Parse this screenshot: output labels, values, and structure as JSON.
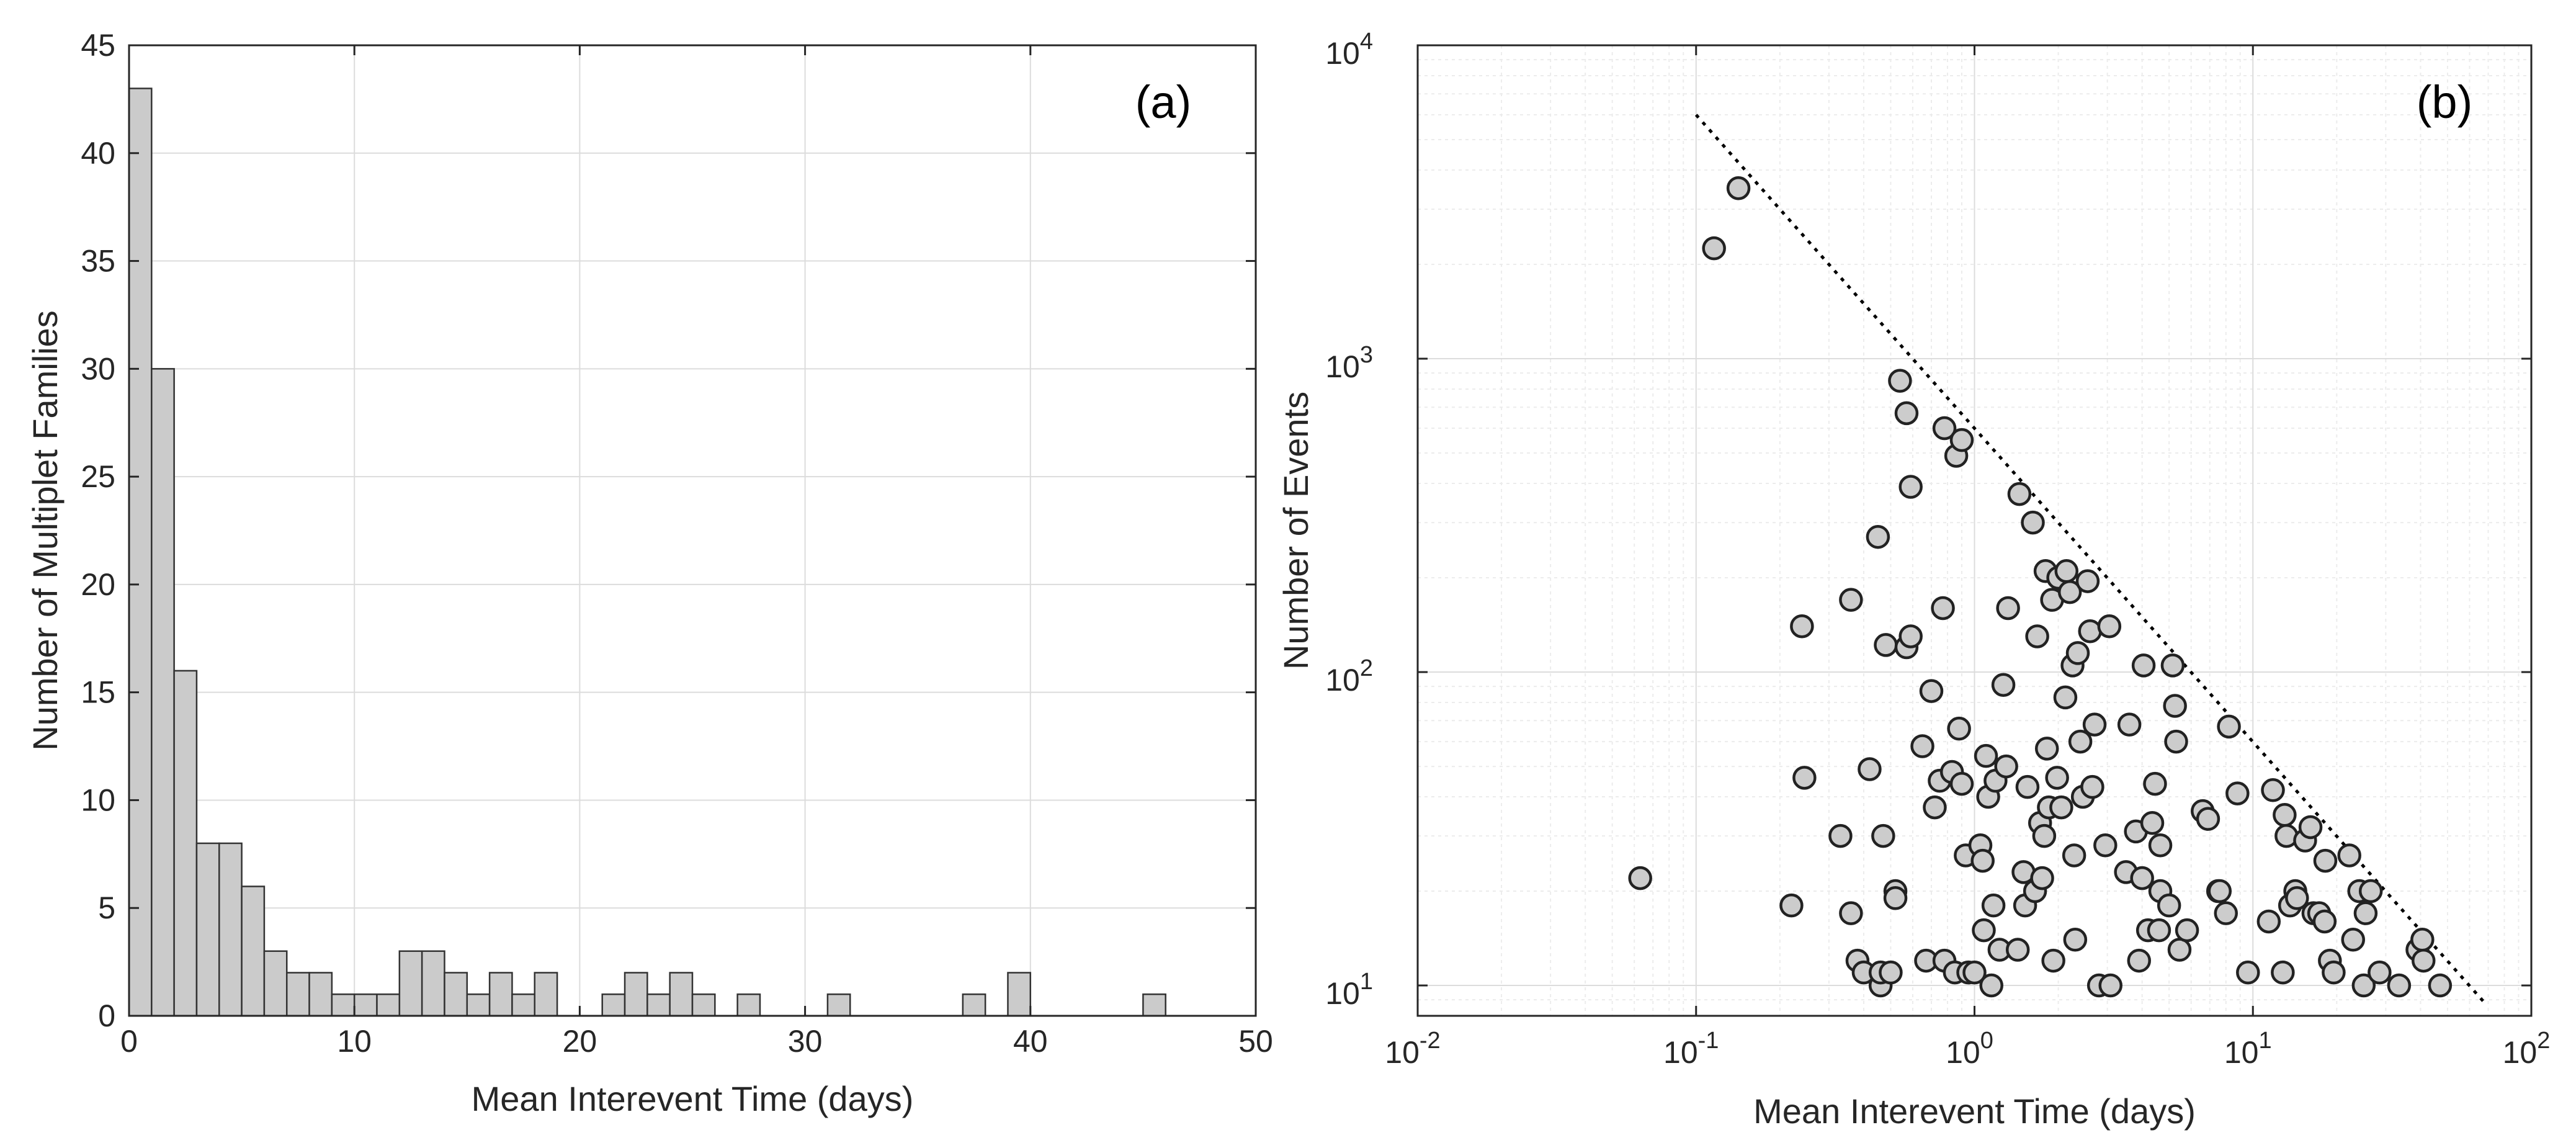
{
  "chart_data": [
    {
      "type": "bar",
      "panel_label": "(a)",
      "xlabel": "Mean Interevent Time (days)",
      "ylabel": "Number of Multiplet Families",
      "xlim": [
        0,
        50
      ],
      "ylim": [
        0,
        45
      ],
      "bin_width": 1,
      "bin_start": 0,
      "counts": [
        43,
        30,
        16,
        8,
        8,
        6,
        3,
        2,
        2,
        1,
        1,
        1,
        3,
        3,
        2,
        1,
        2,
        1,
        2,
        0,
        0,
        1,
        2,
        1,
        2,
        1,
        0,
        1,
        0,
        0,
        0,
        1,
        0,
        0,
        0,
        0,
        0,
        1,
        0,
        2,
        0,
        0,
        0,
        0,
        0,
        1,
        0,
        0,
        0,
        0
      ],
      "xticks": [
        0,
        10,
        20,
        30,
        40,
        50
      ],
      "yticks": [
        0,
        5,
        10,
        15,
        20,
        25,
        30,
        35,
        40,
        45
      ],
      "xtick_labels": [
        "0",
        "10",
        "20",
        "30",
        "40",
        "50"
      ],
      "ytick_labels": [
        "0",
        "5",
        "10",
        "15",
        "20",
        "25",
        "30",
        "35",
        "40",
        "45"
      ],
      "grid": true
    },
    {
      "type": "scatter",
      "panel_label": "(b)",
      "xscale": "log",
      "yscale": "log",
      "xlabel": "Mean Interevent Time (days)",
      "ylabel": "Number of Events",
      "xlim": [
        0.01,
        100
      ],
      "ylim": [
        8,
        10000
      ],
      "xticks": [
        0.01,
        0.1,
        1,
        10,
        100
      ],
      "yticks": [
        10,
        100,
        1000,
        10000
      ],
      "xtick_labels": [
        {
          "base": "10",
          "exp": "-2"
        },
        {
          "base": "10",
          "exp": "-1"
        },
        {
          "base": "10",
          "exp": "0"
        },
        {
          "base": "10",
          "exp": "1"
        },
        {
          "base": "10",
          "exp": "2"
        }
      ],
      "ytick_labels": [
        {
          "base": "10",
          "exp": "1"
        },
        {
          "base": "10",
          "exp": "2"
        },
        {
          "base": "10",
          "exp": "3"
        },
        {
          "base": "10",
          "exp": "4"
        }
      ],
      "grid": true,
      "reference_line": {
        "style": "dotted",
        "x": [
          0.1,
          68
        ],
        "y": [
          6000,
          8.8
        ]
      },
      "points": [
        [
          0.063,
          22
        ],
        [
          0.116,
          2250
        ],
        [
          0.142,
          3500
        ],
        [
          0.22,
          18
        ],
        [
          0.24,
          140
        ],
        [
          0.245,
          46
        ],
        [
          0.33,
          30
        ],
        [
          0.36,
          17
        ],
        [
          0.36,
          170
        ],
        [
          0.38,
          12
        ],
        [
          0.4,
          11
        ],
        [
          0.42,
          49
        ],
        [
          0.45,
          270
        ],
        [
          0.46,
          10
        ],
        [
          0.46,
          11
        ],
        [
          0.47,
          30
        ],
        [
          0.48,
          122
        ],
        [
          0.5,
          11
        ],
        [
          0.52,
          20
        ],
        [
          0.52,
          19
        ],
        [
          0.54,
          850
        ],
        [
          0.57,
          120
        ],
        [
          0.57,
          670
        ],
        [
          0.59,
          130
        ],
        [
          0.59,
          390
        ],
        [
          0.65,
          58
        ],
        [
          0.67,
          12
        ],
        [
          0.7,
          87
        ],
        [
          0.72,
          37
        ],
        [
          0.75,
          45
        ],
        [
          0.77,
          160
        ],
        [
          0.78,
          12
        ],
        [
          0.78,
          600
        ],
        [
          0.83,
          48
        ],
        [
          0.85,
          11
        ],
        [
          0.86,
          490
        ],
        [
          0.88,
          66
        ],
        [
          0.9,
          44
        ],
        [
          0.9,
          550
        ],
        [
          0.93,
          26
        ],
        [
          0.95,
          11
        ],
        [
          1.0,
          11
        ],
        [
          1.05,
          28
        ],
        [
          1.07,
          25
        ],
        [
          1.08,
          15
        ],
        [
          1.1,
          54
        ],
        [
          1.12,
          40
        ],
        [
          1.15,
          10
        ],
        [
          1.17,
          18
        ],
        [
          1.19,
          45
        ],
        [
          1.23,
          13
        ],
        [
          1.27,
          91
        ],
        [
          1.3,
          50
        ],
        [
          1.32,
          160
        ],
        [
          1.43,
          13
        ],
        [
          1.45,
          370
        ],
        [
          1.5,
          23
        ],
        [
          1.52,
          18
        ],
        [
          1.55,
          43
        ],
        [
          1.62,
          300
        ],
        [
          1.65,
          20
        ],
        [
          1.68,
          130
        ],
        [
          1.72,
          33
        ],
        [
          1.75,
          22
        ],
        [
          1.78,
          30
        ],
        [
          1.8,
          210
        ],
        [
          1.82,
          57
        ],
        [
          1.85,
          37
        ],
        [
          1.9,
          170
        ],
        [
          1.92,
          12
        ],
        [
          1.98,
          46
        ],
        [
          2.0,
          200
        ],
        [
          2.05,
          37
        ],
        [
          2.12,
          83
        ],
        [
          2.14,
          210
        ],
        [
          2.2,
          180
        ],
        [
          2.25,
          105
        ],
        [
          2.28,
          26
        ],
        [
          2.3,
          14
        ],
        [
          2.35,
          115
        ],
        [
          2.4,
          60
        ],
        [
          2.45,
          40
        ],
        [
          2.55,
          195
        ],
        [
          2.6,
          135
        ],
        [
          2.65,
          43
        ],
        [
          2.7,
          68
        ],
        [
          2.8,
          10
        ],
        [
          2.95,
          28
        ],
        [
          3.05,
          140
        ],
        [
          3.08,
          10
        ],
        [
          3.5,
          23
        ],
        [
          3.6,
          68
        ],
        [
          3.8,
          31
        ],
        [
          3.9,
          12
        ],
        [
          4.0,
          22
        ],
        [
          4.05,
          105
        ],
        [
          4.2,
          15
        ],
        [
          4.35,
          33
        ],
        [
          4.45,
          44
        ],
        [
          4.6,
          15
        ],
        [
          4.65,
          28
        ],
        [
          4.65,
          20
        ],
        [
          5.0,
          18
        ],
        [
          5.15,
          105
        ],
        [
          5.25,
          78
        ],
        [
          5.3,
          60
        ],
        [
          5.45,
          13
        ],
        [
          5.8,
          15
        ],
        [
          6.6,
          36
        ],
        [
          6.9,
          34
        ],
        [
          7.5,
          20
        ],
        [
          7.6,
          20
        ],
        [
          8.0,
          17
        ],
        [
          8.2,
          67
        ],
        [
          8.8,
          41
        ],
        [
          9.6,
          11
        ],
        [
          11.4,
          16
        ],
        [
          11.8,
          42
        ],
        [
          12.8,
          11
        ],
        [
          13.0,
          35
        ],
        [
          13.2,
          30
        ],
        [
          13.6,
          18
        ],
        [
          14.2,
          20
        ],
        [
          14.4,
          19
        ],
        [
          15.4,
          29
        ],
        [
          16.1,
          32
        ],
        [
          16.5,
          17
        ],
        [
          17.3,
          17
        ],
        [
          18.1,
          16
        ],
        [
          18.2,
          25
        ],
        [
          18.9,
          12
        ],
        [
          19.5,
          11
        ],
        [
          22.2,
          26
        ],
        [
          22.9,
          14
        ],
        [
          24.1,
          20
        ],
        [
          25.0,
          10
        ],
        [
          25.4,
          17
        ],
        [
          26.5,
          20
        ],
        [
          28.5,
          11
        ],
        [
          33.5,
          10
        ],
        [
          39.0,
          13
        ],
        [
          40.6,
          14
        ],
        [
          41.0,
          12
        ],
        [
          47.0,
          10
        ]
      ]
    }
  ]
}
